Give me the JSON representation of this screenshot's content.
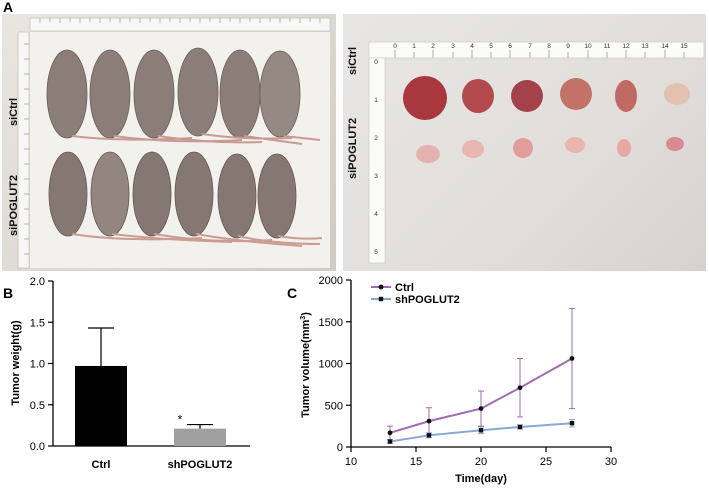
{
  "panels": {
    "a": "A",
    "b": "B",
    "c": "C"
  },
  "photo_left": {
    "row1_label": "siCtrl",
    "row2_label": "siPOGLUT2"
  },
  "photo_right": {
    "row1_label": "siCtrl",
    "row2_label": "siPOGLUT2",
    "ruler_top": [
      "0",
      "1",
      "2",
      "3",
      "4",
      "5",
      "6",
      "7",
      "8",
      "9",
      "10",
      "11",
      "12",
      "13",
      "14",
      "15"
    ],
    "ruler_left": [
      "0",
      "1",
      "2",
      "3",
      "4",
      "5"
    ]
  },
  "colors": {
    "ctrl_bar": "#000000",
    "sh_bar": "#a0a0a0",
    "ctrl_line": "#a26bb1",
    "sh_line": "#85a9d3",
    "marker": "#111111"
  },
  "chart_data": [
    {
      "type": "bar",
      "categories": [
        "Ctrl",
        "shPOGLUT2"
      ],
      "values": [
        0.97,
        0.21
      ],
      "errors": [
        0.46,
        0.05
      ],
      "significance": [
        "",
        "*"
      ],
      "ylabel": "Tumor weight(g)",
      "ylim": [
        0,
        2.0
      ],
      "yticks": [
        "0.0",
        "0.5",
        "1.0",
        "1.5",
        "2.0"
      ],
      "ytick_values": [
        0,
        0.5,
        1.0,
        1.5,
        2.0
      ]
    },
    {
      "type": "line",
      "xlabel": "Time(day)",
      "ylabel_main": "Tumor volume(mm",
      "ylabel_sup": "3",
      "ylabel_end": ")",
      "xlim": [
        10,
        30
      ],
      "ylim": [
        0,
        2000
      ],
      "xticks": [
        "10",
        "15",
        "20",
        "25",
        "30"
      ],
      "xtick_values": [
        10,
        15,
        20,
        25,
        30
      ],
      "yticks": [
        "0",
        "500",
        "1000",
        "1500",
        "2000"
      ],
      "ytick_values": [
        0,
        500,
        1000,
        1500,
        2000
      ],
      "series": [
        {
          "name": "Ctrl",
          "x": [
            13,
            16,
            20,
            23,
            27
          ],
          "y": [
            170,
            310,
            460,
            710,
            1060
          ],
          "err": [
            80,
            160,
            210,
            350,
            600
          ]
        },
        {
          "name": "shPOGLUT2",
          "x": [
            13,
            16,
            20,
            23,
            27
          ],
          "y": [
            65,
            140,
            200,
            240,
            285
          ],
          "err": [
            20,
            30,
            40,
            25,
            45
          ]
        }
      ]
    }
  ]
}
